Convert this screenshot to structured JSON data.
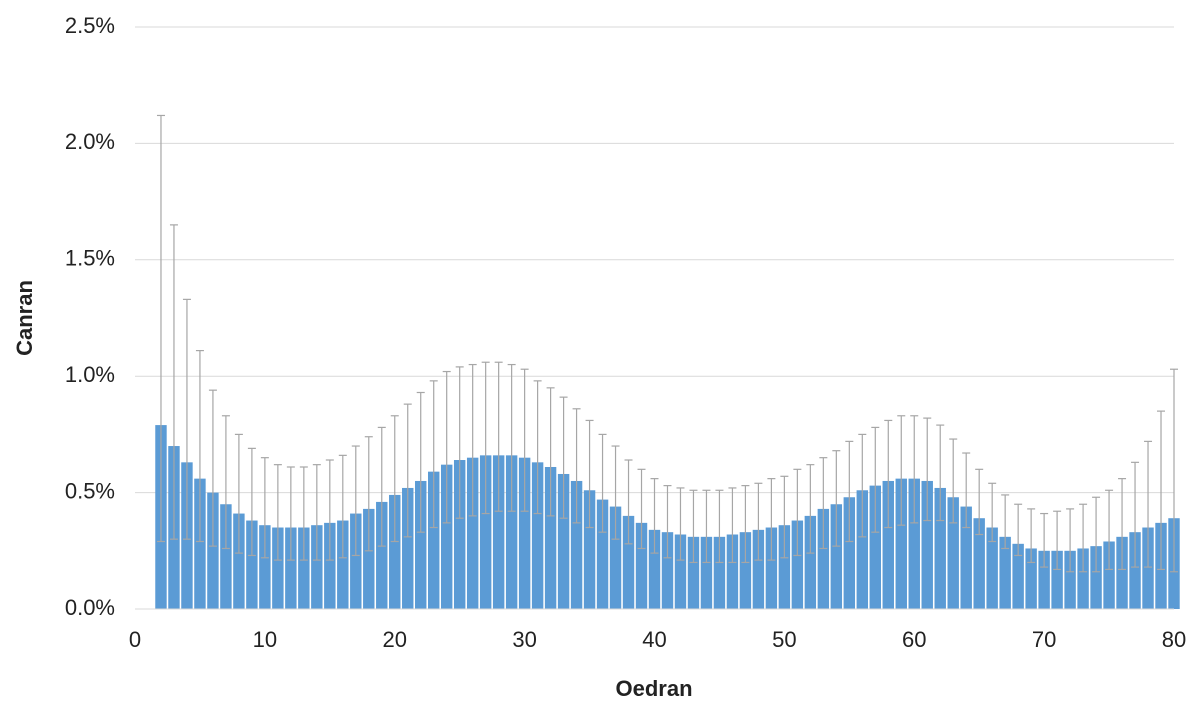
{
  "chart_data": {
    "type": "bar",
    "x_label": "Oedran",
    "y_label": "Canran",
    "color": "#5b9bd5",
    "error_color": "#a6a6a6",
    "grid": true,
    "x": [
      2,
      3,
      4,
      5,
      6,
      7,
      8,
      9,
      10,
      11,
      12,
      13,
      14,
      15,
      16,
      17,
      18,
      19,
      20,
      21,
      22,
      23,
      24,
      25,
      26,
      27,
      28,
      29,
      30,
      31,
      32,
      33,
      34,
      35,
      36,
      37,
      38,
      39,
      40,
      41,
      42,
      43,
      44,
      45,
      46,
      47,
      48,
      49,
      50,
      51,
      52,
      53,
      54,
      55,
      56,
      57,
      58,
      59,
      60,
      61,
      62,
      63,
      64,
      65,
      66,
      67,
      68,
      69,
      70,
      71,
      72,
      73,
      74,
      75,
      76,
      77,
      78,
      79,
      80
    ],
    "values": [
      0.79,
      0.7,
      0.63,
      0.56,
      0.5,
      0.45,
      0.41,
      0.38,
      0.36,
      0.35,
      0.35,
      0.35,
      0.36,
      0.37,
      0.38,
      0.41,
      0.43,
      0.46,
      0.49,
      0.52,
      0.55,
      0.59,
      0.62,
      0.64,
      0.65,
      0.66,
      0.66,
      0.66,
      0.65,
      0.63,
      0.61,
      0.58,
      0.55,
      0.51,
      0.47,
      0.44,
      0.4,
      0.37,
      0.34,
      0.33,
      0.32,
      0.31,
      0.31,
      0.31,
      0.32,
      0.33,
      0.34,
      0.35,
      0.36,
      0.38,
      0.4,
      0.43,
      0.45,
      0.48,
      0.51,
      0.53,
      0.55,
      0.56,
      0.56,
      0.55,
      0.52,
      0.48,
      0.44,
      0.39,
      0.35,
      0.31,
      0.28,
      0.26,
      0.25,
      0.25,
      0.25,
      0.26,
      0.27,
      0.29,
      0.31,
      0.33,
      0.35,
      0.37,
      0.39
    ],
    "upper": [
      2.12,
      1.65,
      1.33,
      1.11,
      0.94,
      0.83,
      0.75,
      0.69,
      0.65,
      0.62,
      0.61,
      0.61,
      0.62,
      0.64,
      0.66,
      0.7,
      0.74,
      0.78,
      0.83,
      0.88,
      0.93,
      0.98,
      1.02,
      1.04,
      1.05,
      1.06,
      1.06,
      1.05,
      1.03,
      0.98,
      0.95,
      0.91,
      0.86,
      0.81,
      0.75,
      0.7,
      0.64,
      0.6,
      0.56,
      0.53,
      0.52,
      0.51,
      0.51,
      0.51,
      0.52,
      0.53,
      0.54,
      0.56,
      0.57,
      0.6,
      0.62,
      0.65,
      0.68,
      0.72,
      0.75,
      0.78,
      0.81,
      0.83,
      0.83,
      0.82,
      0.79,
      0.73,
      0.67,
      0.6,
      0.54,
      0.49,
      0.45,
      0.43,
      0.41,
      0.42,
      0.43,
      0.45,
      0.48,
      0.51,
      0.56,
      0.63,
      0.72,
      0.85,
      1.03
    ],
    "lower": [
      0.29,
      0.3,
      0.3,
      0.29,
      0.27,
      0.26,
      0.24,
      0.23,
      0.22,
      0.21,
      0.21,
      0.21,
      0.21,
      0.21,
      0.22,
      0.23,
      0.25,
      0.27,
      0.29,
      0.31,
      0.33,
      0.35,
      0.37,
      0.39,
      0.4,
      0.41,
      0.42,
      0.42,
      0.42,
      0.41,
      0.4,
      0.39,
      0.37,
      0.35,
      0.33,
      0.3,
      0.28,
      0.26,
      0.24,
      0.22,
      0.21,
      0.2,
      0.2,
      0.2,
      0.2,
      0.2,
      0.21,
      0.21,
      0.22,
      0.23,
      0.24,
      0.26,
      0.27,
      0.29,
      0.31,
      0.33,
      0.35,
      0.36,
      0.37,
      0.38,
      0.38,
      0.37,
      0.35,
      0.32,
      0.29,
      0.26,
      0.23,
      0.2,
      0.18,
      0.17,
      0.16,
      0.16,
      0.16,
      0.17,
      0.17,
      0.18,
      0.18,
      0.17,
      0.16
    ],
    "xlim": [
      0,
      80
    ],
    "xticks": [
      0,
      10,
      20,
      30,
      40,
      50,
      60,
      70,
      80
    ],
    "ylim": [
      0,
      2.5
    ],
    "yticks": [
      {
        "value": 0,
        "label": "0.0%"
      },
      {
        "value": 0.5,
        "label": "0.5%"
      },
      {
        "value": 1.0,
        "label": "1.0%"
      },
      {
        "value": 1.5,
        "label": "1.5%"
      },
      {
        "value": 2.0,
        "label": "2.0%"
      },
      {
        "value": 2.5,
        "label": "2.5%"
      }
    ]
  }
}
